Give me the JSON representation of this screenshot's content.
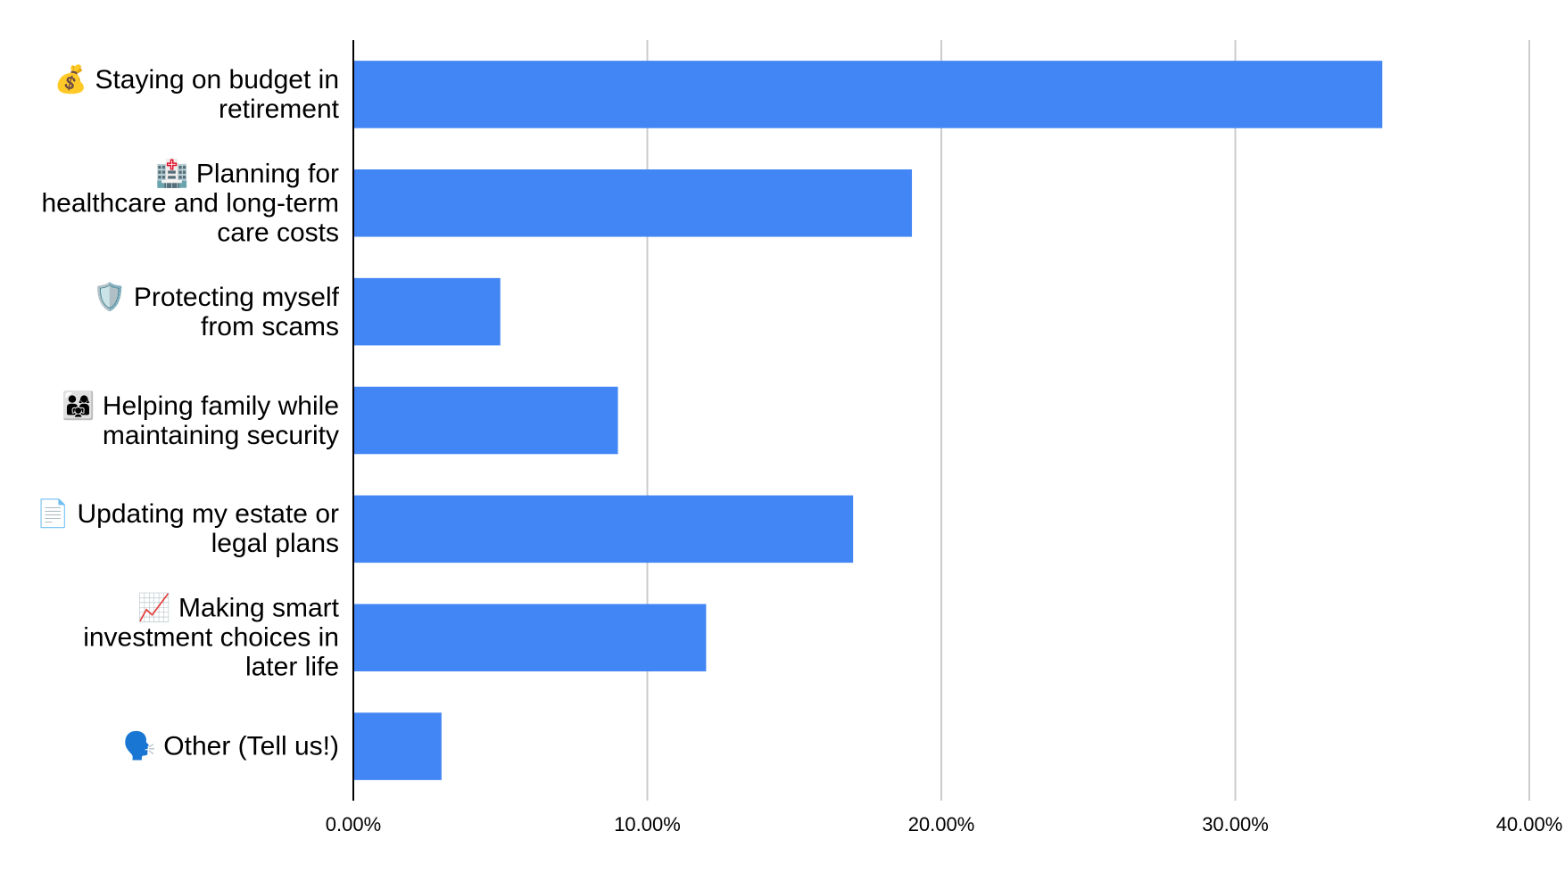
{
  "chart_data": {
    "type": "bar",
    "orientation": "horizontal",
    "categories": [
      "💰 Staying on budget in retirement",
      "🏥 Planning for healthcare and long-term care costs",
      "🛡️ Protecting myself from scams",
      "👨‍👩‍👧 Helping family while maintaining security",
      "📄 Updating my estate or legal plans",
      "📈 Making smart investment choices in later life",
      "🗣️ Other (Tell us!)"
    ],
    "values": [
      35,
      19,
      5,
      9,
      17,
      12,
      3
    ],
    "color": "#4285f4",
    "xlim": [
      0,
      40
    ],
    "xticks": [
      {
        "value": 0,
        "label": "0.00%"
      },
      {
        "value": 10,
        "label": "10.00%"
      },
      {
        "value": 20,
        "label": "20.00%"
      },
      {
        "value": 30,
        "label": "30.00%"
      },
      {
        "value": 40,
        "label": "40.00%"
      }
    ],
    "grid": true
  }
}
